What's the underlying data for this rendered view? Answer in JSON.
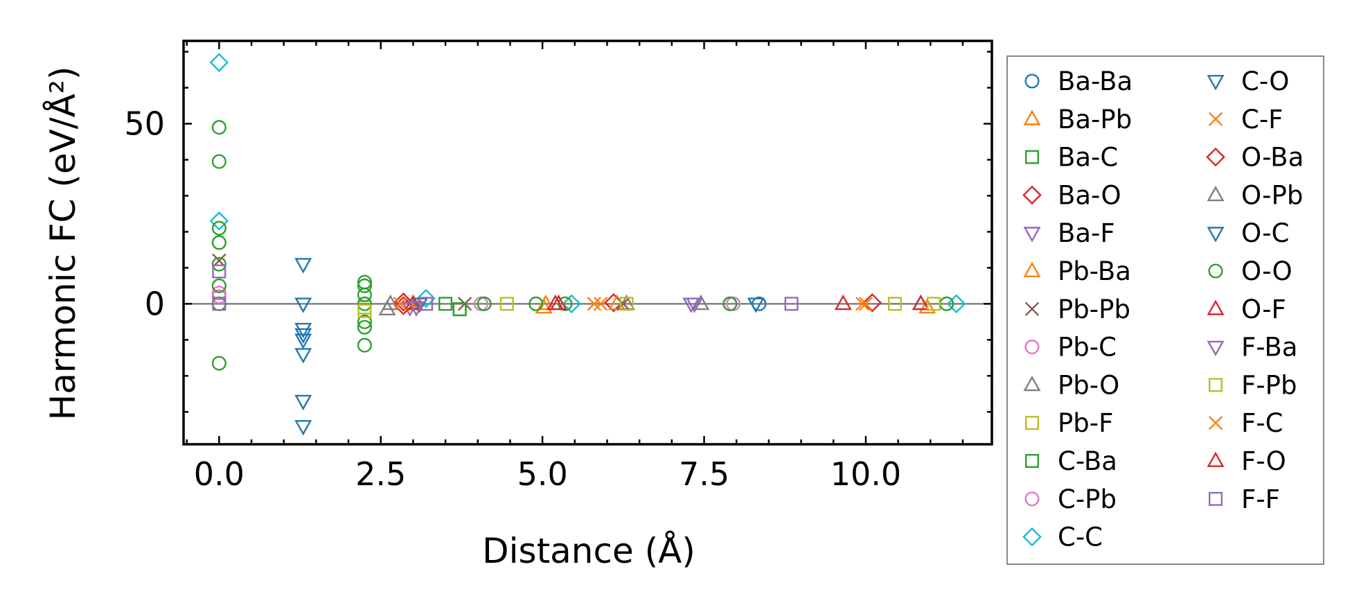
{
  "chart_data": {
    "type": "scatter",
    "title": "",
    "xlabel": "Distance (Å)",
    "ylabel": "Harmonic FC (eV/Å²)",
    "xlim": [
      -0.55,
      11.95
    ],
    "ylim": [
      -39,
      73
    ],
    "xticks": [
      0.0,
      2.5,
      5.0,
      7.5,
      10.0
    ],
    "xtick_labels": [
      "0.0",
      "2.5",
      "5.0",
      "7.5",
      "10.0"
    ],
    "yticks": [
      0,
      50
    ],
    "ytick_labels": [
      "0",
      "50"
    ],
    "zero_line": true,
    "grid": false,
    "legend_position": "outside-right",
    "series": [
      {
        "name": "Ba-Ba",
        "marker": "circle",
        "color": "#1f77b4",
        "points": [
          [
            8.35,
            0.0
          ]
        ]
      },
      {
        "name": "Ba-Pb",
        "marker": "triangle-up",
        "color": "#ff7f0e",
        "points": [
          [
            5.02,
            -1.0
          ],
          [
            10.95,
            -1.0
          ]
        ]
      },
      {
        "name": "Ba-C",
        "marker": "square",
        "color": "#2ca02c",
        "points": [
          [
            3.72,
            -1.5
          ],
          [
            3.5,
            0.0
          ]
        ]
      },
      {
        "name": "Ba-O",
        "marker": "diamond",
        "color": "#d62728",
        "points": [
          [
            2.85,
            0.5
          ],
          [
            6.1,
            0.3
          ]
        ]
      },
      {
        "name": "Ba-F",
        "marker": "triangle-down",
        "color": "#9467bd",
        "points": [
          [
            2.95,
            -1.0
          ],
          [
            7.35,
            0.0
          ]
        ]
      },
      {
        "name": "Pb-Ba",
        "marker": "triangle-up",
        "color": "#ff7f0e",
        "points": [
          [
            5.05,
            0.0
          ],
          [
            6.15,
            0.0
          ]
        ]
      },
      {
        "name": "Pb-Pb",
        "marker": "x",
        "color": "#8c564b",
        "points": [
          [
            0.0,
            12.0
          ],
          [
            3.8,
            0.0
          ],
          [
            6.25,
            0.0
          ]
        ]
      },
      {
        "name": "Pb-C",
        "marker": "circle",
        "color": "#e377c2",
        "points": [
          [
            0.0,
            3.0
          ],
          [
            4.05,
            0.0
          ],
          [
            7.95,
            0.0
          ]
        ]
      },
      {
        "name": "Pb-O",
        "marker": "triangle-up",
        "color": "#7f7f7f",
        "points": [
          [
            2.6,
            -1.5
          ],
          [
            6.3,
            0.0
          ],
          [
            10.85,
            0.0
          ]
        ]
      },
      {
        "name": "Pb-F",
        "marker": "square",
        "color": "#bcbd22",
        "points": [
          [
            2.25,
            -1.0
          ],
          [
            4.45,
            0.0
          ]
        ]
      },
      {
        "name": "C-Ba",
        "marker": "square",
        "color": "#2ca02c",
        "points": [
          [
            3.72,
            -1.5
          ]
        ]
      },
      {
        "name": "C-Pb",
        "marker": "circle",
        "color": "#e377c2",
        "points": [
          [
            0.0,
            2.0
          ],
          [
            7.9,
            0.0
          ]
        ]
      },
      {
        "name": "C-C",
        "marker": "diamond",
        "color": "#17becf",
        "points": [
          [
            0.0,
            67.0
          ],
          [
            0.0,
            23.0
          ],
          [
            3.2,
            1.5
          ],
          [
            5.45,
            0.0
          ],
          [
            11.4,
            0.0
          ]
        ]
      },
      {
        "name": "C-O",
        "marker": "triangle-down",
        "color": "#1f77b4",
        "points": [
          [
            1.3,
            11.0
          ],
          [
            1.3,
            0.0
          ],
          [
            1.3,
            -7.0
          ],
          [
            1.3,
            -8.5
          ],
          [
            1.3,
            -10.0
          ],
          [
            1.3,
            -14.0
          ],
          [
            1.3,
            -27.0
          ],
          [
            1.3,
            -34.0
          ]
        ]
      },
      {
        "name": "C-F",
        "marker": "x",
        "color": "#ff7f0e",
        "points": [
          [
            3.0,
            -0.5
          ],
          [
            5.8,
            0.0
          ],
          [
            9.95,
            0.0
          ]
        ]
      },
      {
        "name": "O-Ba",
        "marker": "diamond",
        "color": "#d62728",
        "points": [
          [
            2.85,
            -0.5
          ],
          [
            10.1,
            0.3
          ]
        ]
      },
      {
        "name": "O-Pb",
        "marker": "triangle-up",
        "color": "#7f7f7f",
        "points": [
          [
            2.65,
            0.0
          ],
          [
            7.45,
            0.0
          ]
        ]
      },
      {
        "name": "O-C",
        "marker": "triangle-down",
        "color": "#1f77b4",
        "points": [
          [
            3.1,
            0.0
          ],
          [
            8.3,
            0.0
          ]
        ]
      },
      {
        "name": "O-O",
        "marker": "circle",
        "color": "#2ca02c",
        "points": [
          [
            0.0,
            49.0
          ],
          [
            0.0,
            39.5
          ],
          [
            0.0,
            21.0
          ],
          [
            0.0,
            17.0
          ],
          [
            0.0,
            11.0
          ],
          [
            0.0,
            5.0
          ],
          [
            0.0,
            0.0
          ],
          [
            0.0,
            -16.5
          ],
          [
            2.25,
            6.0
          ],
          [
            2.25,
            5.0
          ],
          [
            2.25,
            2.5
          ],
          [
            2.25,
            0.0
          ],
          [
            2.25,
            -5.0
          ],
          [
            2.25,
            -6.5
          ],
          [
            2.25,
            -11.5
          ],
          [
            4.1,
            0.0
          ],
          [
            4.9,
            0.0
          ],
          [
            5.35,
            0.0
          ],
          [
            7.9,
            0.0
          ],
          [
            11.25,
            0.0
          ]
        ]
      },
      {
        "name": "O-F",
        "marker": "triangle-up",
        "color": "#d62728",
        "points": [
          [
            3.0,
            0.0
          ],
          [
            5.2,
            0.0
          ],
          [
            9.65,
            0.0
          ],
          [
            10.85,
            0.0
          ]
        ]
      },
      {
        "name": "F-Ba",
        "marker": "triangle-down",
        "color": "#9467bd",
        "points": [
          [
            3.05,
            -1.0
          ],
          [
            7.3,
            0.0
          ]
        ]
      },
      {
        "name": "F-Pb",
        "marker": "square",
        "color": "#bcbd22",
        "points": [
          [
            2.25,
            -2.0
          ],
          [
            6.3,
            0.0
          ],
          [
            10.45,
            0.0
          ],
          [
            11.05,
            0.0
          ]
        ]
      },
      {
        "name": "F-C",
        "marker": "x",
        "color": "#ff7f0e",
        "points": [
          [
            2.8,
            0.0
          ],
          [
            5.9,
            0.0
          ],
          [
            10.0,
            0.0
          ]
        ]
      },
      {
        "name": "F-O",
        "marker": "triangle-up",
        "color": "#d62728",
        "points": [
          [
            5.25,
            0.0
          ]
        ]
      },
      {
        "name": "F-F",
        "marker": "square",
        "color": "#9467bd",
        "points": [
          [
            0.0,
            9.0
          ],
          [
            0.0,
            0.0
          ],
          [
            3.2,
            0.0
          ],
          [
            8.85,
            0.0
          ]
        ]
      }
    ]
  }
}
